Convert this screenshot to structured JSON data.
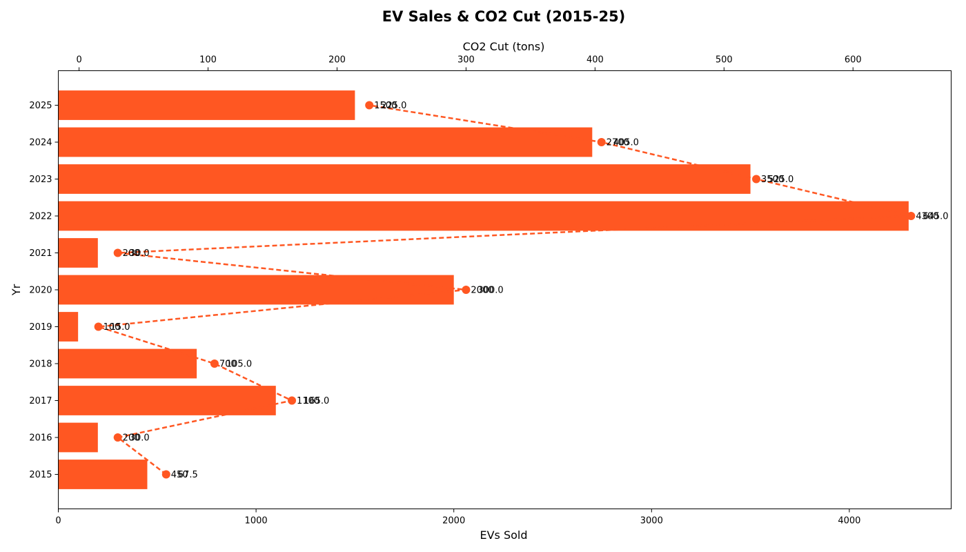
{
  "chart_data": {
    "type": "bar",
    "orientation": "horizontal",
    "title": "EV Sales & CO2 Cut (2015-25)",
    "ylabel": "Yr",
    "xlabel_bottom": "EVs Sold",
    "xlabel_top": "CO2 Cut (tons)",
    "categories": [
      "2015",
      "2016",
      "2017",
      "2018",
      "2019",
      "2020",
      "2021",
      "2022",
      "2023",
      "2024",
      "2025"
    ],
    "series": [
      {
        "kind": "bar",
        "axis": "bottom",
        "values": [
          450,
          200,
          1100,
          700,
          100,
          2000,
          200,
          4300,
          3500,
          2700,
          1500
        ]
      },
      {
        "kind": "line",
        "axis": "top",
        "style": "dashed with circle markers",
        "values": [
          67.5,
          30.0,
          165.0,
          105.0,
          15.0,
          300.0,
          30.0,
          645.0,
          525.0,
          405.0,
          225.0
        ]
      }
    ],
    "bar_labels": [
      "450",
      "200",
      "1100",
      "700",
      "100",
      "2000",
      "200",
      "4300",
      "3500",
      "2700",
      "1500"
    ],
    "line_labels": [
      "67.5",
      "30.0",
      "165.0",
      "105.0",
      "15.0",
      "300.0",
      "30.0",
      "645.0",
      "525.0",
      "405.0",
      "225.0"
    ],
    "xlim_bottom": [
      0,
      4515
    ],
    "xlim_top": [
      -16.1,
      676.1
    ],
    "xticks_bottom": [
      "0",
      "1000",
      "2000",
      "3000",
      "4000"
    ],
    "xticks_top": [
      "0",
      "100",
      "200",
      "300",
      "400",
      "500",
      "600"
    ],
    "grid": false,
    "legend": "none",
    "color": "#FF5722"
  }
}
